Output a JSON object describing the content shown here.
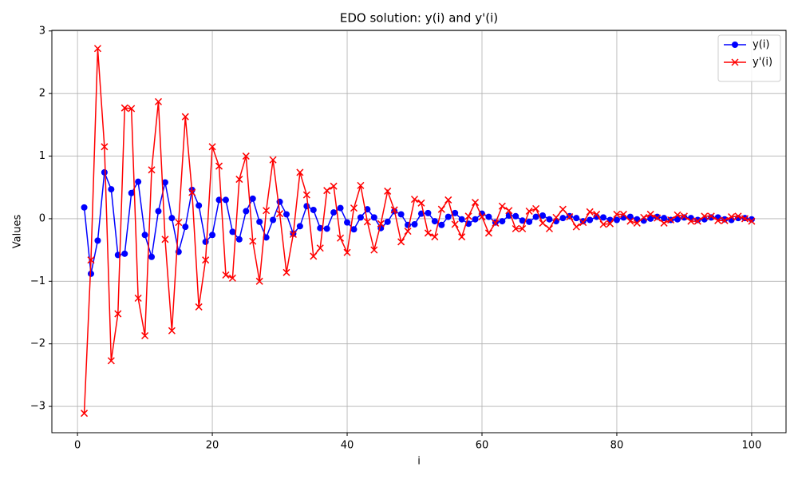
{
  "chart_data": {
    "type": "line",
    "title": "EDO solution: y(i) and y'(i)",
    "x_label": "i",
    "y_label": "Values",
    "x": [
      1,
      2,
      3,
      4,
      5,
      6,
      7,
      8,
      9,
      10,
      11,
      12,
      13,
      14,
      15,
      16,
      17,
      18,
      19,
      20,
      21,
      22,
      23,
      24,
      25,
      26,
      27,
      28,
      29,
      30,
      31,
      32,
      33,
      34,
      35,
      36,
      37,
      38,
      39,
      40,
      41,
      42,
      43,
      44,
      45,
      46,
      47,
      48,
      49,
      50,
      51,
      52,
      53,
      54,
      55,
      56,
      57,
      58,
      59,
      60,
      61,
      62,
      63,
      64,
      65,
      66,
      67,
      68,
      69,
      70,
      71,
      72,
      73,
      74,
      75,
      76,
      77,
      78,
      79,
      80,
      81,
      82,
      83,
      84,
      85,
      86,
      87,
      88,
      89,
      90,
      91,
      92,
      93,
      94,
      95,
      96,
      97,
      98,
      99,
      100
    ],
    "series": [
      {
        "name": "y(i)",
        "color": "#0000ff",
        "marker": "o",
        "values": [
          0.18,
          -0.88,
          -0.35,
          0.74,
          0.47,
          -0.58,
          -0.56,
          0.41,
          0.59,
          -0.26,
          -0.61,
          0.12,
          0.58,
          0.01,
          -0.53,
          -0.13,
          0.46,
          0.21,
          -0.37,
          -0.26,
          0.3,
          0.3,
          -0.21,
          -0.33,
          0.12,
          0.32,
          -0.05,
          -0.3,
          -0.02,
          0.27,
          0.07,
          -0.24,
          -0.12,
          0.2,
          0.14,
          -0.15,
          -0.16,
          0.1,
          0.17,
          -0.06,
          -0.17,
          0.02,
          0.15,
          0.02,
          -0.15,
          -0.05,
          0.12,
          0.07,
          -0.1,
          -0.09,
          0.08,
          0.09,
          -0.04,
          -0.1,
          0.03,
          0.09,
          -0.01,
          -0.08,
          -0.01,
          0.08,
          0.03,
          -0.06,
          -0.04,
          0.05,
          0.04,
          -0.03,
          -0.05,
          0.03,
          0.05,
          -0.01,
          -0.04,
          0.01,
          0.04,
          0.01,
          -0.04,
          -0.02,
          0.03,
          0.02,
          -0.02,
          -0.02,
          0.02,
          0.03,
          -0.01,
          -0.03,
          0.0,
          0.03,
          0.01,
          -0.02,
          -0.01,
          0.02,
          0.01,
          -0.02,
          -0.01,
          0.02,
          0.02,
          -0.01,
          -0.02,
          0.01,
          0.01,
          -0.01
        ]
      },
      {
        "name": "y'(i)",
        "color": "#ff0000",
        "marker": "x",
        "values": [
          -3.11,
          -0.66,
          2.72,
          1.15,
          -2.27,
          -1.52,
          1.77,
          1.76,
          -1.27,
          -1.87,
          0.78,
          1.87,
          -0.33,
          -1.79,
          -0.06,
          1.63,
          0.42,
          -1.41,
          -0.66,
          1.15,
          0.84,
          -0.9,
          -0.95,
          0.63,
          1.0,
          -0.36,
          -1.0,
          0.13,
          0.94,
          0.08,
          -0.86,
          -0.25,
          0.74,
          0.38,
          -0.6,
          -0.47,
          0.45,
          0.52,
          -0.31,
          -0.54,
          0.17,
          0.53,
          -0.05,
          -0.5,
          -0.08,
          0.44,
          0.14,
          -0.37,
          -0.2,
          0.31,
          0.25,
          -0.23,
          -0.29,
          0.15,
          0.3,
          -0.09,
          -0.29,
          0.04,
          0.26,
          0.03,
          -0.23,
          -0.07,
          0.2,
          0.13,
          -0.16,
          -0.16,
          0.12,
          0.16,
          -0.07,
          -0.16,
          0.02,
          0.15,
          0.03,
          -0.13,
          -0.06,
          0.11,
          0.07,
          -0.09,
          -0.08,
          0.07,
          0.07,
          -0.04,
          -0.07,
          0.02,
          0.07,
          0.01,
          -0.07,
          -0.02,
          0.06,
          0.04,
          -0.04,
          -0.04,
          0.04,
          0.04,
          -0.03,
          -0.03,
          0.03,
          0.04,
          0.0,
          -0.04
        ]
      }
    ],
    "xlim": [
      -3.8,
      105.1
    ],
    "ylim": [
      -3.42,
      3.01
    ],
    "xticks": [
      0,
      20,
      40,
      60,
      80,
      100
    ],
    "yticks": [
      {
        "value": -3,
        "label": "−3"
      },
      {
        "value": -2,
        "label": "−2"
      },
      {
        "value": -1,
        "label": "−1"
      },
      0,
      1,
      2,
      3
    ],
    "grid": true,
    "legend": "upper right"
  }
}
